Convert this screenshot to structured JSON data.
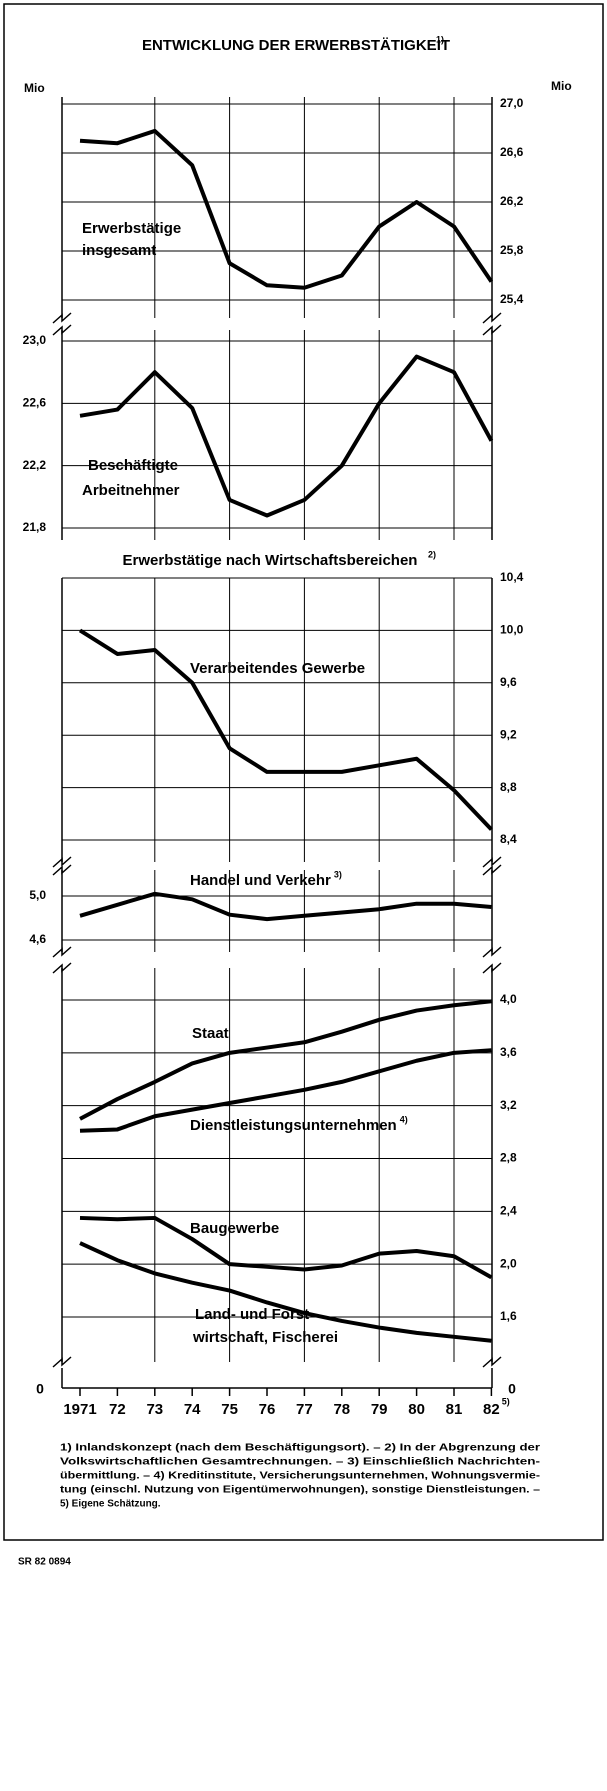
{
  "chart_data": {
    "type": "line",
    "title": "ENTWICKLUNG DER ERWERBSTÄTIGKEIT",
    "title_note": "1)",
    "unit_left": "Mio",
    "unit_right": "Mio",
    "subtitle": "Erwerbstätige nach Wirtschaftsbereichen",
    "subtitle_note": "2)",
    "categories": [
      "1971",
      "72",
      "73",
      "74",
      "75",
      "76",
      "77",
      "78",
      "79",
      "80",
      "81",
      "82"
    ],
    "last_category_note": "5)",
    "axis_zero": 0,
    "panels": [
      {
        "axis": "right",
        "ylim": [
          25.4,
          27.0
        ],
        "yticks": [
          {
            "value": 27.0,
            "label": "27,0"
          },
          {
            "value": 26.6,
            "label": "26,6"
          },
          {
            "value": 26.2,
            "label": "26,2"
          },
          {
            "value": 25.8,
            "label": "25,8"
          },
          {
            "value": 25.4,
            "label": "25,4"
          }
        ],
        "series": [
          {
            "label": [
              "Erwerbstätige",
              "insgesamt"
            ],
            "color": "#000000",
            "values": [
              26.7,
              26.68,
              26.78,
              26.5,
              25.7,
              25.52,
              25.5,
              25.6,
              26.0,
              26.2,
              26.0,
              25.55
            ]
          }
        ]
      },
      {
        "axis": "left",
        "ylim": [
          21.8,
          23.0
        ],
        "yticks": [
          {
            "value": 23.0,
            "label": "23,0"
          },
          {
            "value": 22.6,
            "label": "22,6"
          },
          {
            "value": 22.2,
            "label": "22,2"
          },
          {
            "value": 21.8,
            "label": "21,8"
          }
        ],
        "series": [
          {
            "label": [
              "Beschäftigte",
              "Arbeitnehmer"
            ],
            "color": "#000000",
            "values": [
              22.52,
              22.56,
              22.8,
              22.57,
              21.98,
              21.88,
              21.98,
              22.2,
              22.6,
              22.9,
              22.8,
              22.36
            ]
          }
        ]
      },
      {
        "axis": "right",
        "ylim": [
          8.4,
          10.4
        ],
        "yticks": [
          {
            "value": 10.4,
            "label": "10,4"
          },
          {
            "value": 10.0,
            "label": "10,0"
          },
          {
            "value": 9.6,
            "label": "9,6"
          },
          {
            "value": 9.2,
            "label": "9,2"
          },
          {
            "value": 8.8,
            "label": "8,8"
          },
          {
            "value": 8.4,
            "label": "8,4"
          }
        ],
        "series": [
          {
            "label": [
              "Verarbeitendes Gewerbe"
            ],
            "color": "#000000",
            "values": [
              10.0,
              9.82,
              9.85,
              9.6,
              9.1,
              8.92,
              8.92,
              8.92,
              8.97,
              9.02,
              8.78,
              8.48
            ]
          }
        ]
      },
      {
        "axis": "left",
        "ylim": [
          4.6,
          5.0
        ],
        "yticks": [
          {
            "value": 5.0,
            "label": "5,0"
          },
          {
            "value": 4.6,
            "label": "4,6"
          }
        ],
        "series": [
          {
            "label": [
              "Handel und Verkehr"
            ],
            "note": "3)",
            "color": "#000000",
            "values": [
              4.82,
              4.92,
              5.02,
              4.97,
              4.83,
              4.79,
              4.82,
              4.85,
              4.88,
              4.93,
              4.93,
              4.9
            ]
          }
        ]
      },
      {
        "axis": "right",
        "ylim": [
          1.6,
          4.0
        ],
        "yticks": [
          {
            "value": 4.0,
            "label": "4,0"
          },
          {
            "value": 3.6,
            "label": "3,6"
          },
          {
            "value": 3.2,
            "label": "3,2"
          },
          {
            "value": 2.8,
            "label": "2,8"
          },
          {
            "value": 2.4,
            "label": "2,4"
          },
          {
            "value": 2.0,
            "label": "2,0"
          },
          {
            "value": 1.6,
            "label": "1,6"
          }
        ],
        "series": [
          {
            "label": [
              "Staat"
            ],
            "color": "#000000",
            "values": [
              3.1,
              3.25,
              3.38,
              3.52,
              3.6,
              3.64,
              3.68,
              3.76,
              3.85,
              3.92,
              3.96,
              3.99
            ]
          },
          {
            "label": [
              "Dienstleistungsunternehmen"
            ],
            "note": "4)",
            "color": "#000000",
            "values": [
              3.01,
              3.02,
              3.12,
              3.17,
              3.22,
              3.27,
              3.32,
              3.38,
              3.46,
              3.54,
              3.6,
              3.62
            ]
          },
          {
            "label": [
              "Baugewerbe"
            ],
            "color": "#000000",
            "values": [
              2.35,
              2.34,
              2.35,
              2.19,
              2.0,
              1.98,
              1.96,
              1.99,
              2.08,
              2.1,
              2.06,
              1.9
            ]
          },
          {
            "label": [
              "Land- und Forst-",
              "wirtschaft, Fischerei"
            ],
            "color": "#000000",
            "values": [
              2.16,
              2.03,
              1.93,
              1.86,
              1.8,
              1.71,
              1.63,
              1.57,
              1.52,
              1.48,
              1.45,
              1.42
            ]
          }
        ]
      }
    ],
    "footnotes": [
      "1) Inlandskonzept (nach dem Beschäftigungsort). – 2) In der Abgrenzung der",
      "Volkswirtschaftlichen Gesamtrechnungen. – 3) Einschließlich Nachrichten-",
      "übermittlung. – 4) Kreditinstitute, Versicherungsunternehmen, Wohnungsvermie-",
      "tung (einschl. Nutzung von Eigentümerwohnungen), sonstige Dienstleistungen. –",
      "5) Eigene Schätzung."
    ],
    "source": "SR 82 0894"
  }
}
